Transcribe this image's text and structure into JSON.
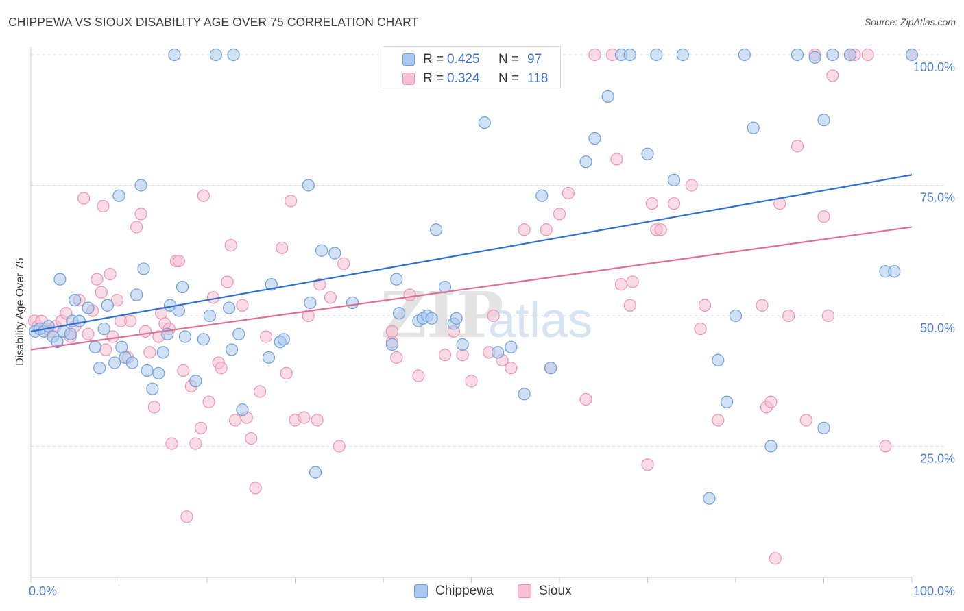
{
  "header": {
    "title": "CHIPPEWA VS SIOUX DISABILITY AGE OVER 75 CORRELATION CHART",
    "source": "Source: ZipAtlas.com"
  },
  "legend": {
    "chippewa": {
      "r_label": "R =",
      "r_value": "0.425",
      "n_label": "N =",
      "n_value": "97"
    },
    "sioux": {
      "r_label": "R =",
      "r_value": "0.324",
      "n_label": "N =",
      "n_value": "118"
    }
  },
  "watermark": {
    "zip": "ZIP",
    "atlas": "atlas"
  },
  "colors": {
    "chippewa_fill": "#a9c8ef",
    "chippewa_stroke": "#6d9fdc",
    "chippewa_line": "#2f6fcf",
    "sioux_fill": "#f7bfd0",
    "sioux_stroke": "#ec93b0",
    "sioux_line": "#e06d98",
    "axis_text": "#4a7cc8",
    "grid": "#dddddd"
  },
  "chart_data": {
    "type": "scatter",
    "title": "CHIPPEWA VS SIOUX DISABILITY AGE OVER 75 CORRELATION CHART",
    "xlabel": "",
    "ylabel": "Disability Age Over 75",
    "xlim": [
      0,
      100
    ],
    "ylim": [
      0,
      105
    ],
    "x_tick_labels": [
      "0.0%",
      "100.0%"
    ],
    "y_ticks": [
      25,
      50,
      75,
      100
    ],
    "y_tick_labels": [
      "25.0%",
      "50.0%",
      "75.0%",
      "100.0%"
    ],
    "grid": "horizontal dashed",
    "legend_placement": "top-center and bottom",
    "series": [
      {
        "name": "Chippewa",
        "color": "#a9c8ef",
        "trend": {
          "x": [
            0,
            100
          ],
          "y": [
            47.0,
            77.0
          ]
        },
        "points": [
          [
            0.5,
            47
          ],
          [
            1,
            47.5
          ],
          [
            1.5,
            47
          ],
          [
            2,
            48
          ],
          [
            2.5,
            46
          ],
          [
            3,
            45
          ],
          [
            3.3,
            57
          ],
          [
            3.7,
            47
          ],
          [
            4.5,
            46.5
          ],
          [
            4.7,
            49
          ],
          [
            5,
            53
          ],
          [
            5.5,
            49
          ],
          [
            6.5,
            51.5
          ],
          [
            7.3,
            44
          ],
          [
            7.8,
            40
          ],
          [
            8.3,
            47.5
          ],
          [
            8.7,
            52
          ],
          [
            9.5,
            41
          ],
          [
            10,
            73
          ],
          [
            10.3,
            44
          ],
          [
            10.7,
            42
          ],
          [
            11.5,
            41
          ],
          [
            12,
            54
          ],
          [
            12.5,
            75
          ],
          [
            12.8,
            59
          ],
          [
            13.2,
            39.5
          ],
          [
            13.8,
            36
          ],
          [
            14.5,
            39
          ],
          [
            15,
            43
          ],
          [
            15.5,
            46.5
          ],
          [
            15.8,
            52
          ],
          [
            16.3,
            100
          ],
          [
            16.8,
            51
          ],
          [
            17.2,
            55.5
          ],
          [
            17.5,
            46
          ],
          [
            18.7,
            37.5
          ],
          [
            19.6,
            45.5
          ],
          [
            20.3,
            50
          ],
          [
            21,
            100
          ],
          [
            22.5,
            51.5
          ],
          [
            23,
            100
          ],
          [
            22.8,
            43.5
          ],
          [
            23.6,
            46.5
          ],
          [
            24,
            32
          ],
          [
            27,
            42
          ],
          [
            27.3,
            56
          ],
          [
            28.3,
            45
          ],
          [
            28.7,
            45.5
          ],
          [
            31.5,
            75
          ],
          [
            31.7,
            52.5
          ],
          [
            32.3,
            20
          ],
          [
            33,
            62.5
          ],
          [
            34.5,
            62
          ],
          [
            36.5,
            52.5
          ],
          [
            41,
            44.5
          ],
          [
            41.5,
            57
          ],
          [
            41.8,
            50.5
          ],
          [
            44,
            49
          ],
          [
            44.5,
            49.5
          ],
          [
            45,
            50
          ],
          [
            45.5,
            49.5
          ],
          [
            46,
            66.5
          ],
          [
            47,
            55.5
          ],
          [
            48,
            48.5
          ],
          [
            48.3,
            49.5
          ],
          [
            49,
            44.5
          ],
          [
            51.5,
            87
          ],
          [
            53,
            43
          ],
          [
            54.5,
            44
          ],
          [
            56,
            35
          ],
          [
            58,
            73
          ],
          [
            59,
            40
          ],
          [
            63,
            79.5
          ],
          [
            64,
            84
          ],
          [
            65.5,
            92
          ],
          [
            67,
            100
          ],
          [
            68,
            100
          ],
          [
            70,
            81
          ],
          [
            71,
            100
          ],
          [
            73,
            76
          ],
          [
            74,
            100
          ],
          [
            77,
            15
          ],
          [
            78,
            41.5
          ],
          [
            79,
            33.5
          ],
          [
            80,
            50
          ],
          [
            81,
            100
          ],
          [
            82,
            86
          ],
          [
            84,
            25
          ],
          [
            87,
            100
          ],
          [
            90,
            28.5
          ],
          [
            89,
            99.5
          ],
          [
            90,
            87.5
          ],
          [
            91,
            100
          ],
          [
            93,
            100
          ],
          [
            97,
            58.5
          ],
          [
            98,
            58.5
          ],
          [
            100,
            100
          ]
        ]
      },
      {
        "name": "Sioux",
        "color": "#f7bfd0",
        "trend": {
          "x": [
            0,
            100
          ],
          "y": [
            43.5,
            67.0
          ]
        },
        "points": [
          [
            0.4,
            49
          ],
          [
            0.8,
            48
          ],
          [
            1.2,
            49
          ],
          [
            1.8,
            47.5
          ],
          [
            2.2,
            47
          ],
          [
            2.8,
            48
          ],
          [
            3.5,
            49
          ],
          [
            4,
            50.5
          ],
          [
            4.5,
            46
          ],
          [
            5,
            48
          ],
          [
            5.5,
            53
          ],
          [
            6,
            72.5
          ],
          [
            6.5,
            46.5
          ],
          [
            7,
            51
          ],
          [
            7.5,
            57
          ],
          [
            8,
            54.5
          ],
          [
            8.2,
            71
          ],
          [
            8.5,
            43.5
          ],
          [
            9,
            58
          ],
          [
            9.3,
            46
          ],
          [
            9.8,
            53
          ],
          [
            10.2,
            49
          ],
          [
            11,
            42
          ],
          [
            11.3,
            49
          ],
          [
            12,
            67
          ],
          [
            12.5,
            69.5
          ],
          [
            13,
            47
          ],
          [
            13.5,
            43
          ],
          [
            14,
            32.5
          ],
          [
            14.5,
            46
          ],
          [
            14.8,
            50.5
          ],
          [
            15.2,
            48.5
          ],
          [
            15.7,
            47.5
          ],
          [
            16,
            25.5
          ],
          [
            16.5,
            60.5
          ],
          [
            17.3,
            39.5
          ],
          [
            17.7,
            11.5
          ],
          [
            18.2,
            36.5
          ],
          [
            18.7,
            25.5
          ],
          [
            19.3,
            28.5
          ],
          [
            19.6,
            73
          ],
          [
            20.2,
            33.5
          ],
          [
            20.7,
            53.5
          ],
          [
            21.3,
            41
          ],
          [
            21.6,
            40
          ],
          [
            22.3,
            56.5
          ],
          [
            22.7,
            63.5
          ],
          [
            23.2,
            30
          ],
          [
            24,
            52
          ],
          [
            25,
            26.5
          ],
          [
            25.5,
            17
          ],
          [
            26,
            35.5
          ],
          [
            26.7,
            46
          ],
          [
            28.5,
            63
          ],
          [
            29,
            39
          ],
          [
            29.5,
            72
          ],
          [
            30,
            30
          ],
          [
            31,
            30.5
          ],
          [
            31.5,
            50
          ],
          [
            32.5,
            30
          ],
          [
            32.8,
            56
          ],
          [
            34,
            53.5
          ],
          [
            35,
            25
          ],
          [
            35.5,
            60
          ],
          [
            41,
            47
          ],
          [
            41,
            45
          ],
          [
            41.5,
            42
          ],
          [
            43,
            54
          ],
          [
            44,
            38.5
          ],
          [
            47,
            42.5
          ],
          [
            48,
            47
          ],
          [
            49,
            42.5
          ],
          [
            50,
            37.5
          ],
          [
            52,
            43
          ],
          [
            52.5,
            50
          ],
          [
            53.5,
            41.5
          ],
          [
            54.5,
            40
          ],
          [
            56,
            66.5
          ],
          [
            59,
            40
          ],
          [
            60,
            69.5
          ],
          [
            61,
            73.5
          ],
          [
            63,
            34
          ],
          [
            64,
            100
          ],
          [
            66,
            100
          ],
          [
            66.5,
            80
          ],
          [
            67,
            56
          ],
          [
            68,
            52
          ],
          [
            68.3,
            56.5
          ],
          [
            70,
            21.5
          ],
          [
            70.5,
            71.5
          ],
          [
            71,
            66.5
          ],
          [
            71.5,
            66.5
          ],
          [
            73,
            71.5
          ],
          [
            75,
            75
          ],
          [
            76,
            47.5
          ],
          [
            76.5,
            52
          ],
          [
            78,
            30
          ],
          [
            83,
            52
          ],
          [
            83.5,
            32.5
          ],
          [
            84,
            33.5
          ],
          [
            85,
            71.5
          ],
          [
            86,
            50
          ],
          [
            87,
            82.5
          ],
          [
            88,
            30
          ],
          [
            89,
            100
          ],
          [
            90,
            69
          ],
          [
            91,
            96
          ],
          [
            93,
            100
          ],
          [
            93.5,
            100
          ],
          [
            95,
            100
          ],
          [
            97,
            25
          ],
          [
            100,
            100
          ],
          [
            84.5,
            3.5
          ],
          [
            90.5,
            50
          ],
          [
            24.5,
            30.5
          ],
          [
            16.8,
            60.5
          ],
          [
            58.5,
            66.5
          ],
          [
            54.5,
            100
          ]
        ]
      }
    ]
  }
}
